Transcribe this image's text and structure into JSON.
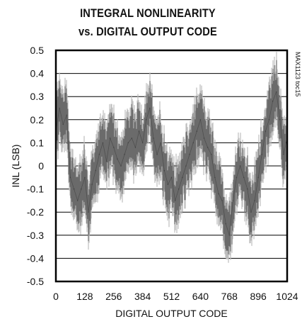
{
  "chart_data": {
    "type": "line",
    "title": [
      "INTEGRAL NONLINEARITY",
      "vs. DIGITAL OUTPUT CODE"
    ],
    "xlabel": "DIGITAL OUTPUT CODE",
    "ylabel": "INL (LSB)",
    "xlim": [
      0,
      1024
    ],
    "ylim": [
      -0.5,
      0.5
    ],
    "x_ticks": [
      0,
      128,
      256,
      384,
      512,
      640,
      768,
      896,
      1024
    ],
    "y_ticks": [
      0.5,
      0.4,
      0.3,
      0.2,
      0.1,
      0,
      -0.1,
      -0.2,
      -0.3,
      -0.4,
      -0.5
    ],
    "x_tick_labels": [
      "0",
      "128",
      "256",
      "384",
      "512",
      "640",
      "768",
      "896",
      "1024"
    ],
    "y_tick_labels": [
      "0.5",
      "0.4",
      "0.3",
      "0.2",
      "0.1",
      "0",
      "-0.1",
      "-0.2",
      "-0.3",
      "-0.4",
      "-0.5"
    ],
    "grid": "horizontal",
    "annotation": "MAX1123 toc15",
    "series": [
      {
        "x": [
          0,
          16,
          32,
          48,
          64,
          80,
          96,
          112,
          128,
          144,
          160,
          176,
          192,
          208,
          224,
          240,
          256,
          272,
          288,
          304,
          320,
          336,
          352,
          368,
          384,
          400,
          416,
          432,
          448,
          464,
          480,
          496,
          512,
          528,
          544,
          560,
          576,
          592,
          608,
          624,
          640,
          656,
          672,
          688,
          704,
          720,
          736,
          752,
          768,
          784,
          800,
          816,
          832,
          848,
          864,
          880,
          896,
          912,
          928,
          944,
          960,
          976,
          992,
          1008,
          1024
        ],
        "y": [
          0.15,
          0.25,
          0.18,
          0.22,
          -0.05,
          -0.1,
          -0.15,
          -0.1,
          -0.05,
          -0.2,
          -0.08,
          -0.02,
          0.05,
          0.1,
          0.02,
          0.12,
          0.08,
          0.03,
          0.0,
          0.05,
          0.1,
          0.12,
          0.08,
          0.15,
          0.1,
          0.2,
          0.25,
          0.12,
          0.05,
          0.1,
          -0.02,
          -0.08,
          -0.05,
          -0.15,
          -0.1,
          -0.05,
          0.0,
          0.05,
          0.1,
          0.15,
          0.2,
          0.12,
          0.08,
          0.05,
          -0.05,
          -0.12,
          -0.15,
          -0.25,
          -0.3,
          -0.15,
          -0.05,
          0.0,
          -0.05,
          -0.1,
          -0.2,
          -0.15,
          -0.05,
          0.05,
          0.15,
          0.2,
          0.28,
          0.32,
          0.2,
          0.05,
          0.12
        ],
        "band": [
          0.12,
          0.12,
          0.12,
          0.12,
          0.12,
          0.12,
          0.12,
          0.12,
          0.12,
          0.12,
          0.12,
          0.12,
          0.12,
          0.12,
          0.12,
          0.12,
          0.12,
          0.12,
          0.12,
          0.12,
          0.12,
          0.12,
          0.12,
          0.12,
          0.12,
          0.12,
          0.12,
          0.12,
          0.12,
          0.12,
          0.12,
          0.12,
          0.12,
          0.12,
          0.12,
          0.12,
          0.12,
          0.12,
          0.12,
          0.12,
          0.12,
          0.12,
          0.12,
          0.12,
          0.12,
          0.12,
          0.12,
          0.12,
          0.12,
          0.12,
          0.12,
          0.12,
          0.12,
          0.12,
          0.12,
          0.12,
          0.12,
          0.12,
          0.12,
          0.12,
          0.12,
          0.12,
          0.12,
          0.12,
          0.12
        ]
      }
    ],
    "colors": {
      "trace": "#555555",
      "trace_light": "#bdbdbd",
      "grid": "#000000"
    }
  }
}
